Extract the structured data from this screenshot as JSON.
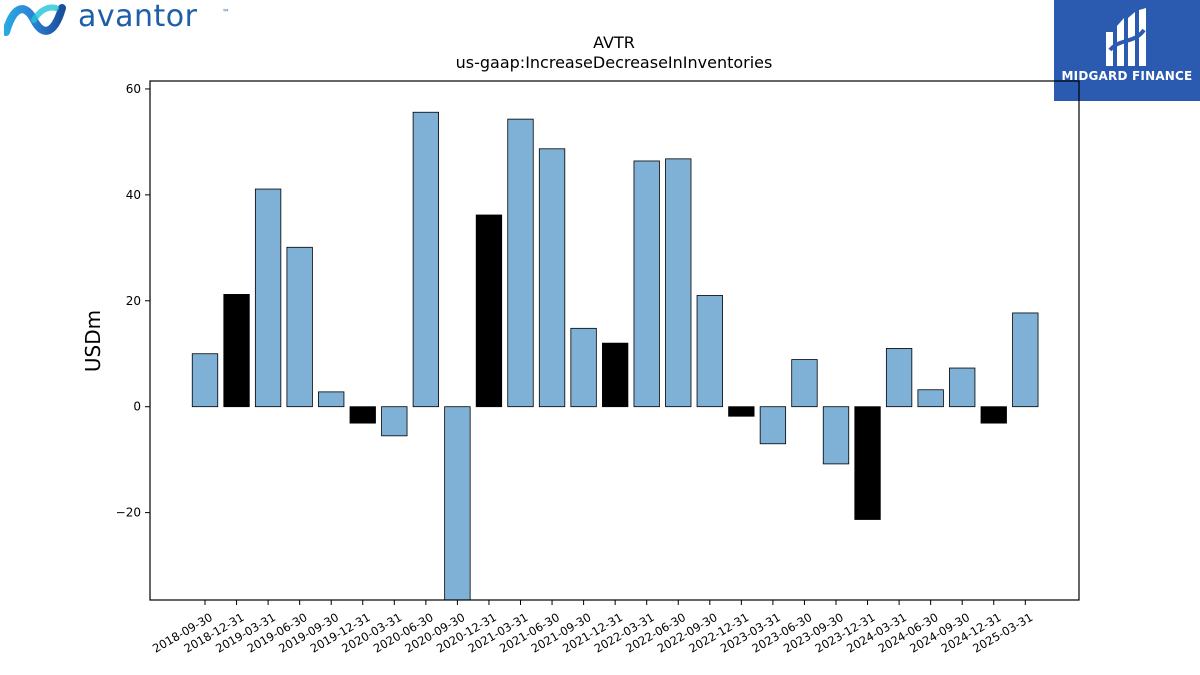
{
  "logos": {
    "left_wordmark": "avantor",
    "left_tm": "™",
    "right_brand": "MIDGARD FINANCE"
  },
  "chart_data": {
    "type": "bar",
    "title": "AVTR",
    "subtitle": "us-gaap:IncreaseDecreaseInInventories",
    "xlabel": "",
    "ylabel": "USDm",
    "ylim": [
      -36.5,
      61.5
    ],
    "yticks": [
      -20,
      0,
      20,
      40,
      60
    ],
    "grid": false,
    "categories": [
      "2018-09-30",
      "2018-12-31",
      "2019-03-31",
      "2019-06-30",
      "2019-09-30",
      "2019-12-31",
      "2020-03-31",
      "2020-06-30",
      "2020-09-30",
      "2020-12-31",
      "2021-03-31",
      "2021-06-30",
      "2021-09-30",
      "2021-12-31",
      "2022-03-31",
      "2022-06-30",
      "2022-09-30",
      "2022-12-31",
      "2023-03-31",
      "2023-06-30",
      "2023-09-30",
      "2023-12-31",
      "2024-03-31",
      "2024-06-30",
      "2024-09-30",
      "2024-12-31",
      "2025-03-31"
    ],
    "values": [
      10.0,
      21.2,
      41.1,
      30.1,
      2.8,
      -3.1,
      -5.5,
      55.6,
      -36.5,
      36.2,
      54.3,
      48.7,
      14.8,
      12.0,
      46.4,
      46.8,
      21.0,
      -1.8,
      -7.0,
      8.9,
      -10.8,
      -21.3,
      11.0,
      3.2,
      7.3,
      -3.1,
      17.7
    ],
    "colors": {
      "quarter": "#7fb0d5",
      "year_end": "#000000",
      "edge": "#000000"
    },
    "highlight_categories": [
      "2018-12-31",
      "2019-12-31",
      "2020-12-31",
      "2021-12-31",
      "2022-12-31",
      "2023-12-31",
      "2024-12-31"
    ]
  }
}
